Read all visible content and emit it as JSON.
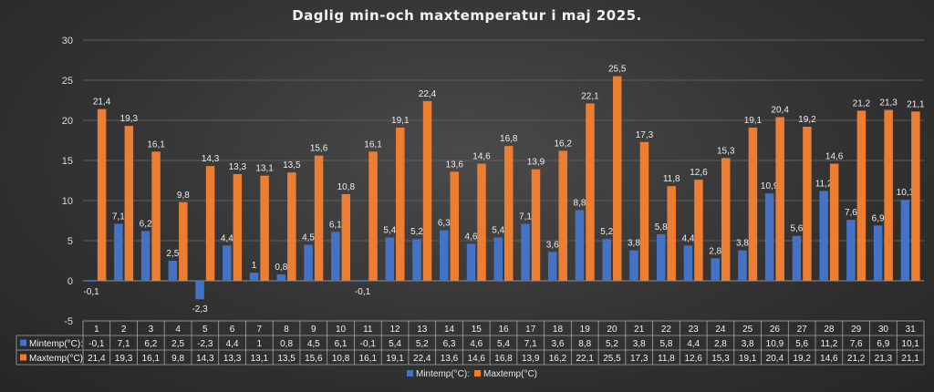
{
  "chart_data": {
    "type": "bar",
    "title": "Daglig min-och maxtemperatur i maj 2025.",
    "categories": [
      "1",
      "2",
      "3",
      "4",
      "5",
      "6",
      "7",
      "8",
      "9",
      "10",
      "11",
      "12",
      "13",
      "14",
      "15",
      "16",
      "17",
      "18",
      "19",
      "20",
      "21",
      "22",
      "23",
      "24",
      "25",
      "26",
      "27",
      "28",
      "29",
      "30",
      "31"
    ],
    "series": [
      {
        "name": "Mintemp(°C):",
        "color": "#4472c4",
        "values": [
          -0.1,
          7.1,
          6.2,
          2.5,
          -2.3,
          4.4,
          1,
          0.8,
          4.5,
          6.1,
          -0.1,
          5.4,
          5.2,
          6.3,
          4.6,
          5.4,
          7.1,
          3.6,
          8.8,
          5.2,
          3.8,
          5.8,
          4.4,
          2.8,
          3.8,
          10.9,
          5.6,
          11.2,
          7.6,
          6.9,
          10.1
        ],
        "labels": [
          "-0,1",
          "7,1",
          "6,2",
          "2,5",
          "-2,3",
          "4,4",
          "1",
          "0,8",
          "4,5",
          "6,1",
          "-0,1",
          "5,4",
          "5,2",
          "6,3",
          "4,6",
          "5,4",
          "7,1",
          "3,6",
          "8,8",
          "5,2",
          "3,8",
          "5,8",
          "4,4",
          "2,8",
          "3,8",
          "10,9",
          "5,6",
          "11,2",
          "7,6",
          "6,9",
          "10,1"
        ]
      },
      {
        "name": "Maxtemp(°C)",
        "color": "#ed7d31",
        "values": [
          21.4,
          19.3,
          16.1,
          9.8,
          14.3,
          13.3,
          13.1,
          13.5,
          15.6,
          10.8,
          16.1,
          19.1,
          22.4,
          13.6,
          14.6,
          16.8,
          13.9,
          16.2,
          22.1,
          25.5,
          17.3,
          11.8,
          12.6,
          15.3,
          19.1,
          20.4,
          19.2,
          14.6,
          21.2,
          21.3,
          21.1
        ],
        "labels": [
          "21,4",
          "19,3",
          "16,1",
          "9,8",
          "14,3",
          "13,3",
          "13,1",
          "13,5",
          "15,6",
          "10,8",
          "16,1",
          "19,1",
          "22,4",
          "13,6",
          "14,6",
          "16,8",
          "13,9",
          "16,2",
          "22,1",
          "25,5",
          "17,3",
          "11,8",
          "12,6",
          "15,3",
          "19,1",
          "20,4",
          "19,2",
          "14,6",
          "21,2",
          "21,3",
          "21,1"
        ]
      }
    ],
    "ylim": [
      -5,
      30
    ],
    "yticks": [
      "-5",
      "0",
      "5",
      "10",
      "15",
      "20",
      "25",
      "30"
    ],
    "grid": true,
    "legend": "bottom",
    "data_table": true,
    "xlabel": "",
    "ylabel": ""
  }
}
